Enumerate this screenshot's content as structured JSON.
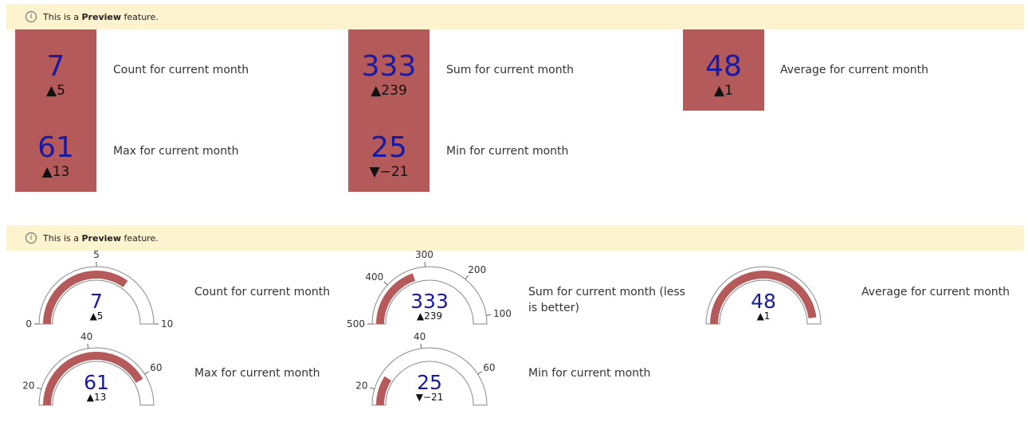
{
  "banners": [
    {
      "prefix": "This is a ",
      "bold": "Preview",
      "suffix": " feature."
    },
    {
      "prefix": "This is a ",
      "bold": "Preview",
      "suffix": " feature."
    }
  ],
  "tiles": [
    {
      "value": 7,
      "delta": "▲5",
      "label": "Count for current month"
    },
    {
      "value": 333,
      "delta": "▲239",
      "label": "Sum for current month"
    },
    {
      "value": 48,
      "delta": "▲1",
      "label": "Average for current month"
    },
    {
      "value": 61,
      "delta": "▲13",
      "label": "Max for current month"
    },
    {
      "value": 25,
      "delta": "▼−21",
      "label": "Min for current month"
    }
  ],
  "gauges": [
    {
      "value": 7,
      "delta": "▲5",
      "label": "Count for current month",
      "lim": [
        0,
        10
      ],
      "ticks": [
        0,
        5,
        10
      ]
    },
    {
      "value": 333,
      "delta": "▲239",
      "label": "Sum for current month (less is better)",
      "lim": [
        500,
        80
      ],
      "ticks": [
        500,
        400,
        300,
        200,
        100
      ]
    },
    {
      "value": 48,
      "delta": "▲1",
      "label": "Average for current month",
      "lim": [
        0,
        50
      ],
      "ticks": []
    },
    {
      "value": 61,
      "delta": "▲13",
      "label": "Max for current month",
      "lim": [
        15,
        70
      ],
      "ticks": [
        20,
        40,
        60
      ]
    },
    {
      "value": 25,
      "delta": "▼−21",
      "label": "Min for current month",
      "lim": [
        15,
        70
      ],
      "ticks": [
        20,
        40,
        60
      ]
    }
  ],
  "color": "#b55a5a"
}
